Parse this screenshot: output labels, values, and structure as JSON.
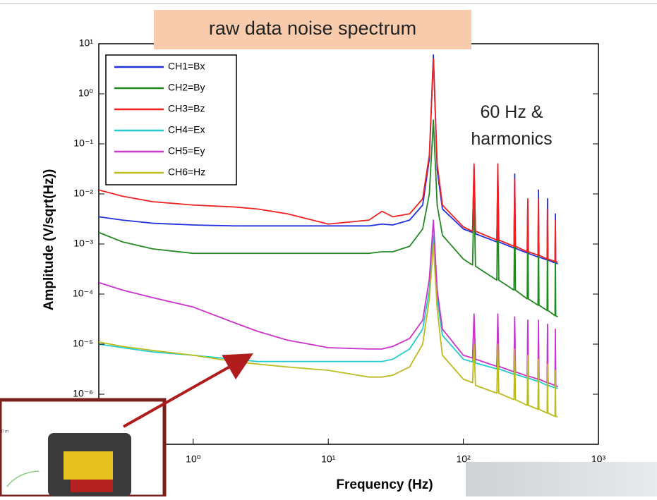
{
  "chart_data": {
    "type": "line",
    "title": "raw data noise spectrum",
    "annotation": "60 Hz & harmonics",
    "xlabel": "Frequency  (Hz)",
    "ylabel": "Amplitude  (V/sqrt(Hz))",
    "log_x": true,
    "log_y": true,
    "legend": "upper left",
    "xlim": [
      0.2,
      1000
    ],
    "ylim": [
      1e-07,
      10
    ],
    "xticks": [
      {
        "value": 1,
        "label": "10⁰"
      },
      {
        "value": 10,
        "label": "10¹"
      },
      {
        "value": 100,
        "label": "10²"
      },
      {
        "value": 1000,
        "label": "10³"
      }
    ],
    "yticks": [
      {
        "value": 1e-06,
        "label": "10⁻⁶"
      },
      {
        "value": 1e-05,
        "label": "10⁻⁵"
      },
      {
        "value": 0.0001,
        "label": "10⁻⁴"
      },
      {
        "value": 0.001,
        "label": "10⁻³"
      },
      {
        "value": 0.01,
        "label": "10⁻²"
      },
      {
        "value": 0.1,
        "label": "10⁻¹"
      },
      {
        "value": 1,
        "label": "10⁰"
      },
      {
        "value": 10,
        "label": "10¹"
      }
    ],
    "x": [
      0.2,
      0.3,
      0.5,
      1,
      2,
      3,
      5,
      10,
      20,
      25,
      30,
      40,
      50,
      56,
      60,
      64,
      70,
      100,
      117,
      120,
      123,
      177,
      180,
      183,
      237,
      240,
      243,
      297,
      300,
      303,
      357,
      360,
      363,
      417,
      420,
      423,
      477,
      480,
      483,
      500
    ],
    "series": [
      {
        "name": "CH1=Bx",
        "color": "#2233dd",
        "values": [
          0.0035,
          0.003,
          0.0026,
          0.0024,
          0.0023,
          0.0023,
          0.0023,
          0.0023,
          0.0023,
          0.0025,
          0.0024,
          0.003,
          0.006,
          0.05,
          6,
          0.03,
          0.005,
          0.002,
          0.0017,
          0.035,
          0.0016,
          0.0011,
          0.03,
          0.0011,
          0.00083,
          0.025,
          0.00082,
          0.00066,
          0.006,
          0.00065,
          0.00055,
          0.012,
          0.00055,
          0.00048,
          0.008,
          0.00048,
          0.00042,
          0.004,
          0.00042,
          0.0004
        ]
      },
      {
        "name": "CH2=By",
        "color": "#228822",
        "values": [
          0.0017,
          0.0011,
          0.0008,
          0.00065,
          0.00065,
          0.00065,
          0.00065,
          0.00065,
          0.00065,
          0.0007,
          0.0007,
          0.0009,
          0.002,
          0.01,
          0.3,
          0.006,
          0.0015,
          0.0005,
          0.00038,
          0.01,
          0.00036,
          0.00019,
          0.01,
          0.00019,
          0.00012,
          0.006,
          0.00012,
          8e-05,
          0.003,
          8e-05,
          6e-05,
          0.003,
          6e-05,
          4.7e-05,
          0.002,
          4.7e-05,
          3.7e-05,
          0.001,
          3.7e-05,
          3.5e-05
        ]
      },
      {
        "name": "CH3=Bz",
        "color": "#ee2222",
        "values": [
          0.012,
          0.009,
          0.007,
          0.006,
          0.0055,
          0.005,
          0.004,
          0.0025,
          0.003,
          0.0045,
          0.0035,
          0.004,
          0.008,
          0.06,
          5,
          0.04,
          0.006,
          0.0022,
          0.0018,
          0.04,
          0.0018,
          0.0012,
          0.04,
          0.0012,
          0.0009,
          0.02,
          0.0009,
          0.0007,
          0.008,
          0.0007,
          0.0006,
          0.008,
          0.0006,
          0.0005,
          0.005,
          0.0005,
          0.00045,
          0.003,
          0.00045,
          0.00043
        ]
      },
      {
        "name": "CH4=Ex",
        "color": "#22cccc",
        "values": [
          1e-05,
          8.5e-06,
          7e-06,
          6e-06,
          5e-06,
          4.5e-06,
          4.5e-06,
          4.5e-06,
          4.5e-06,
          4.5e-06,
          5e-06,
          8e-06,
          2e-05,
          0.00012,
          0.0015,
          8e-05,
          1.5e-05,
          5e-06,
          4.4e-06,
          3.5e-05,
          4.2e-06,
          3.2e-06,
          3.5e-05,
          3.2e-06,
          2.5e-06,
          3e-05,
          2.5e-06,
          2.1e-06,
          2.5e-05,
          2.1e-06,
          1.8e-06,
          2.5e-05,
          1.8e-06,
          1.5e-06,
          2e-05,
          1.5e-06,
          1.35e-06,
          1.5e-05,
          1.35e-06,
          1.3e-06
        ]
      },
      {
        "name": "CH5=Ey",
        "color": "#cc33cc",
        "values": [
          0.00017,
          0.00012,
          8.5e-05,
          5.5e-05,
          2.7e-05,
          1.8e-05,
          1.2e-05,
          8.5e-06,
          8e-06,
          8e-06,
          9e-06,
          1.3e-05,
          3e-05,
          0.0002,
          0.003,
          0.00012,
          2e-05,
          6e-06,
          5.3e-06,
          4e-05,
          5e-06,
          3.6e-06,
          4e-05,
          3.6e-06,
          2.8e-06,
          3.5e-05,
          2.8e-06,
          2.3e-06,
          3e-05,
          2.3e-06,
          2e-06,
          3e-05,
          2e-06,
          1.7e-06,
          2.5e-05,
          1.7e-06,
          1.5e-06,
          2e-05,
          1.5e-06,
          1.4e-06
        ]
      },
      {
        "name": "CH6=Hz",
        "color": "#bbbb22",
        "values": [
          1.1e-05,
          9e-06,
          7.5e-06,
          6e-06,
          4.5e-06,
          4e-06,
          3.5e-06,
          3e-06,
          2.2e-06,
          2.2e-06,
          2.4e-06,
          3.5e-06,
          1e-05,
          8e-05,
          0.001,
          5e-05,
          6e-06,
          2e-06,
          1.7e-06,
          1e-05,
          1.5e-06,
          1.05e-06,
          1e-05,
          1.05e-06,
          7.8e-07,
          8e-06,
          7.8e-07,
          6e-07,
          6e-06,
          6e-07,
          5e-07,
          5e-06,
          5e-07,
          4.2e-07,
          4e-06,
          4.2e-07,
          3.6e-07,
          3e-06,
          3.6e-07,
          3.5e-07
        ]
      }
    ]
  },
  "inset": {
    "label": "0 m"
  }
}
